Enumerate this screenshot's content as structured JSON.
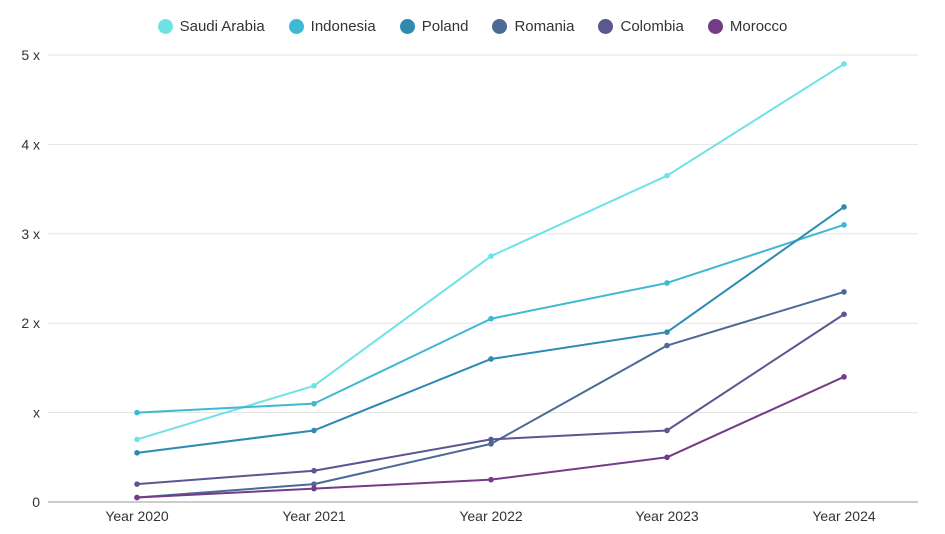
{
  "chart_data": {
    "type": "line",
    "title": "",
    "xlabel": "",
    "ylabel": "",
    "categories": [
      "Year 2020",
      "Year 2021",
      "Year 2022",
      "Year 2023",
      "Year 2024"
    ],
    "ylim": [
      0,
      5
    ],
    "yticks": [
      0,
      1,
      2,
      3,
      4,
      5
    ],
    "ytick_labels": [
      "0",
      "x",
      "2 x",
      "3 x",
      "4 x",
      "5 x"
    ],
    "legend_position": "top-center",
    "grid": true,
    "series": [
      {
        "name": "Saudi Arabia",
        "color": "#6ee3e6",
        "values": [
          0.7,
          1.3,
          2.75,
          3.65,
          4.9
        ]
      },
      {
        "name": "Indonesia",
        "color": "#3fb8d3",
        "values": [
          1.0,
          1.1,
          2.05,
          2.45,
          3.1
        ]
      },
      {
        "name": "Poland",
        "color": "#2f8ab2",
        "values": [
          0.55,
          0.8,
          1.6,
          1.9,
          3.3
        ]
      },
      {
        "name": "Romania",
        "color": "#4b6a96",
        "values": [
          0.05,
          0.2,
          0.65,
          1.75,
          2.35
        ]
      },
      {
        "name": "Colombia",
        "color": "#5a5791",
        "values": [
          0.2,
          0.35,
          0.7,
          0.8,
          2.1
        ]
      },
      {
        "name": "Morocco",
        "color": "#743c86",
        "values": [
          0.05,
          0.15,
          0.25,
          0.5,
          1.4
        ]
      }
    ]
  }
}
